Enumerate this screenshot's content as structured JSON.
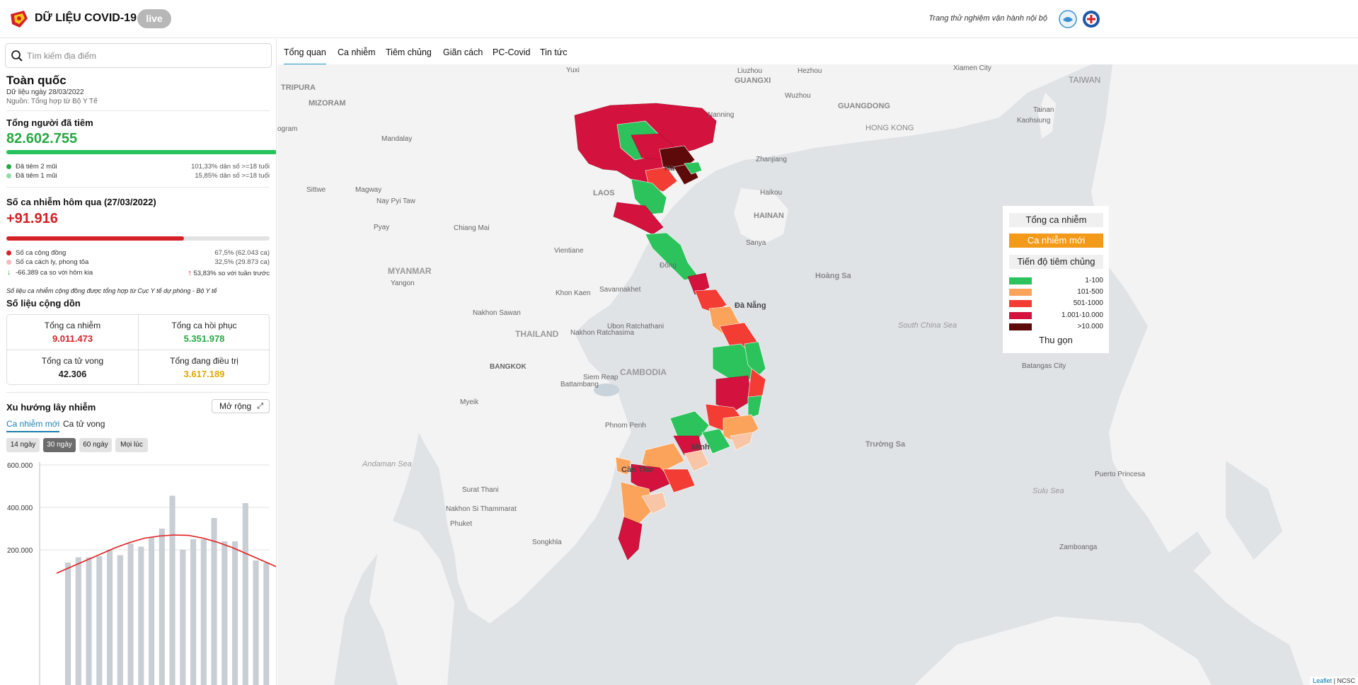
{
  "header": {
    "title": "DỮ LIỆU COVID-19",
    "live": "live",
    "trial_note": "Trang thử nghiệm vận hành nội bộ"
  },
  "search": {
    "placeholder": "Tìm kiếm địa điểm"
  },
  "region": {
    "title": "Toàn quốc",
    "date": "Dữ liệu ngày 28/03/2022",
    "source": "Nguồn: Tổng hợp từ Bộ Y Tế"
  },
  "vaccination": {
    "title": "Tổng người đã tiêm",
    "total": "82.602.755",
    "progress_fraction": 1.0,
    "rows": [
      {
        "label": "Đã tiêm 2 mũi",
        "value": "101,33% dân số >=18 tuổi",
        "color": "#27a843"
      },
      {
        "label": "Đã tiêm 1 mũi",
        "value": "15,85% dân số >=18 tuổi",
        "color": "#8fdca5"
      }
    ]
  },
  "infections": {
    "title": "Số ca nhiễm hôm qua (27/03/2022)",
    "total": "+91.916",
    "community_fraction": 0.675,
    "rows": [
      {
        "label": "Số ca cộng đồng",
        "value": "67,5% (62.043 ca)",
        "color": "#d42027"
      },
      {
        "label": "Số ca cách ly, phong tỏa",
        "value": "32,5% (29.873 ca)",
        "color": "#f3b9bb"
      }
    ],
    "change_day": "-66.389 ca so với hôm kia",
    "change_week": "53,83% so với tuần trước",
    "note": "Số liệu ca nhiễm cộng đồng được tổng hợp từ Cục Y tế dự phòng - Bộ Y tế"
  },
  "cumulative": {
    "title": "Số liệu cộng dồn",
    "cells": [
      {
        "label": "Tổng ca nhiễm",
        "value": "9.011.473",
        "color": "#d42027"
      },
      {
        "label": "Tổng ca hồi phục",
        "value": "5.351.978",
        "color": "#27a843"
      },
      {
        "label": "Tổng ca tử vong",
        "value": "42.306",
        "color": "#222222"
      },
      {
        "label": "Tổng đang điều trị",
        "value": "3.617.189",
        "color": "#e0a800"
      }
    ]
  },
  "trend": {
    "title": "Xu hướng lây nhiễm",
    "expand": "Mở rộng",
    "tabs": [
      "Ca nhiễm mới",
      "Ca tử vong"
    ],
    "ranges": [
      "14 ngày",
      "30 ngày",
      "60 ngày",
      "Mọi lúc"
    ],
    "active_range": "30 ngày"
  },
  "chart_data": {
    "type": "bar",
    "y_ticks": [
      "600.000",
      "400.000",
      "200.000"
    ],
    "ylim": [
      0,
      600000
    ],
    "series": [
      {
        "values": [
          140000,
          165000,
          165000,
          170000,
          200000,
          175000,
          230000,
          215000,
          260000,
          300000,
          455000,
          200000,
          250000,
          250000,
          350000,
          240000,
          240000,
          420000,
          150000,
          140000
        ]
      }
    ],
    "trend_line": [
      90000,
      120000,
      150000,
      180000,
      210000,
      235000,
      255000,
      265000,
      270000,
      268000,
      255000,
      235000,
      210000,
      180000,
      150000,
      120000
    ]
  },
  "tabs": [
    "Tổng quan",
    "Ca nhiễm",
    "Tiêm chủng",
    "Giãn cách",
    "PC-Covid",
    "Tin tức"
  ],
  "map": {
    "labels": [
      "Yuxi",
      "Liuzhou",
      "GUANGXI",
      "Hezhou",
      "Xiamen City",
      "TAIWAN",
      "TRIPURA",
      "MIZORAM",
      "Wuzhou",
      "GUANGDONG",
      "Nanning",
      "Mandalay",
      "HONG KONG",
      "Tainan",
      "Kaohsiung",
      "ogram",
      "Zhanjiang",
      "Sittwe",
      "Magway",
      "LAOS",
      "Haikou",
      "Nay Pyi Taw",
      "HAINAN",
      "Pyay",
      "Chiang Mai",
      "Sanya",
      "Vientiane",
      "MYANMAR",
      "Hoàng Sa",
      "Yangon",
      "Đông",
      "Khon Kaen",
      "Savannakhet",
      "Đà Nẵng",
      "Nakhon Sawan",
      "Ubon Ratchathani",
      "THAILAND",
      "Nakhon Ratchasima",
      "South China Sea",
      "BANGKOK",
      "CAMBODIA",
      "Siem Reap",
      "Battambang",
      "Batangas City",
      "Myeik",
      "Phnom Penh",
      "Trường Sa",
      "Andaman Sea",
      "Cần Thơ",
      "Minh",
      "Puerto Princesa",
      "Surat Thani",
      "Sulu Sea",
      "Nakhon Si Thammarat",
      "Phuket",
      "Songkhla",
      "Zamboanga",
      "Hà"
    ],
    "attribution_link": "Leaflet",
    "attribution": "NCSC"
  },
  "legend": {
    "buttons": [
      "Tổng ca nhiễm",
      "Ca nhiễm mới",
      "Tiến độ tiêm chủng"
    ],
    "items": [
      {
        "label": "1-100",
        "color": "#2dc35c"
      },
      {
        "label": "101-500",
        "color": "#fba35a"
      },
      {
        "label": "501-1000",
        "color": "#f23c34"
      },
      {
        "label": "1.001-10.000",
        "color": "#d3123e"
      },
      {
        "label": ">10.000",
        "color": "#5e0a0a"
      }
    ],
    "collapse": "Thu gọn"
  }
}
